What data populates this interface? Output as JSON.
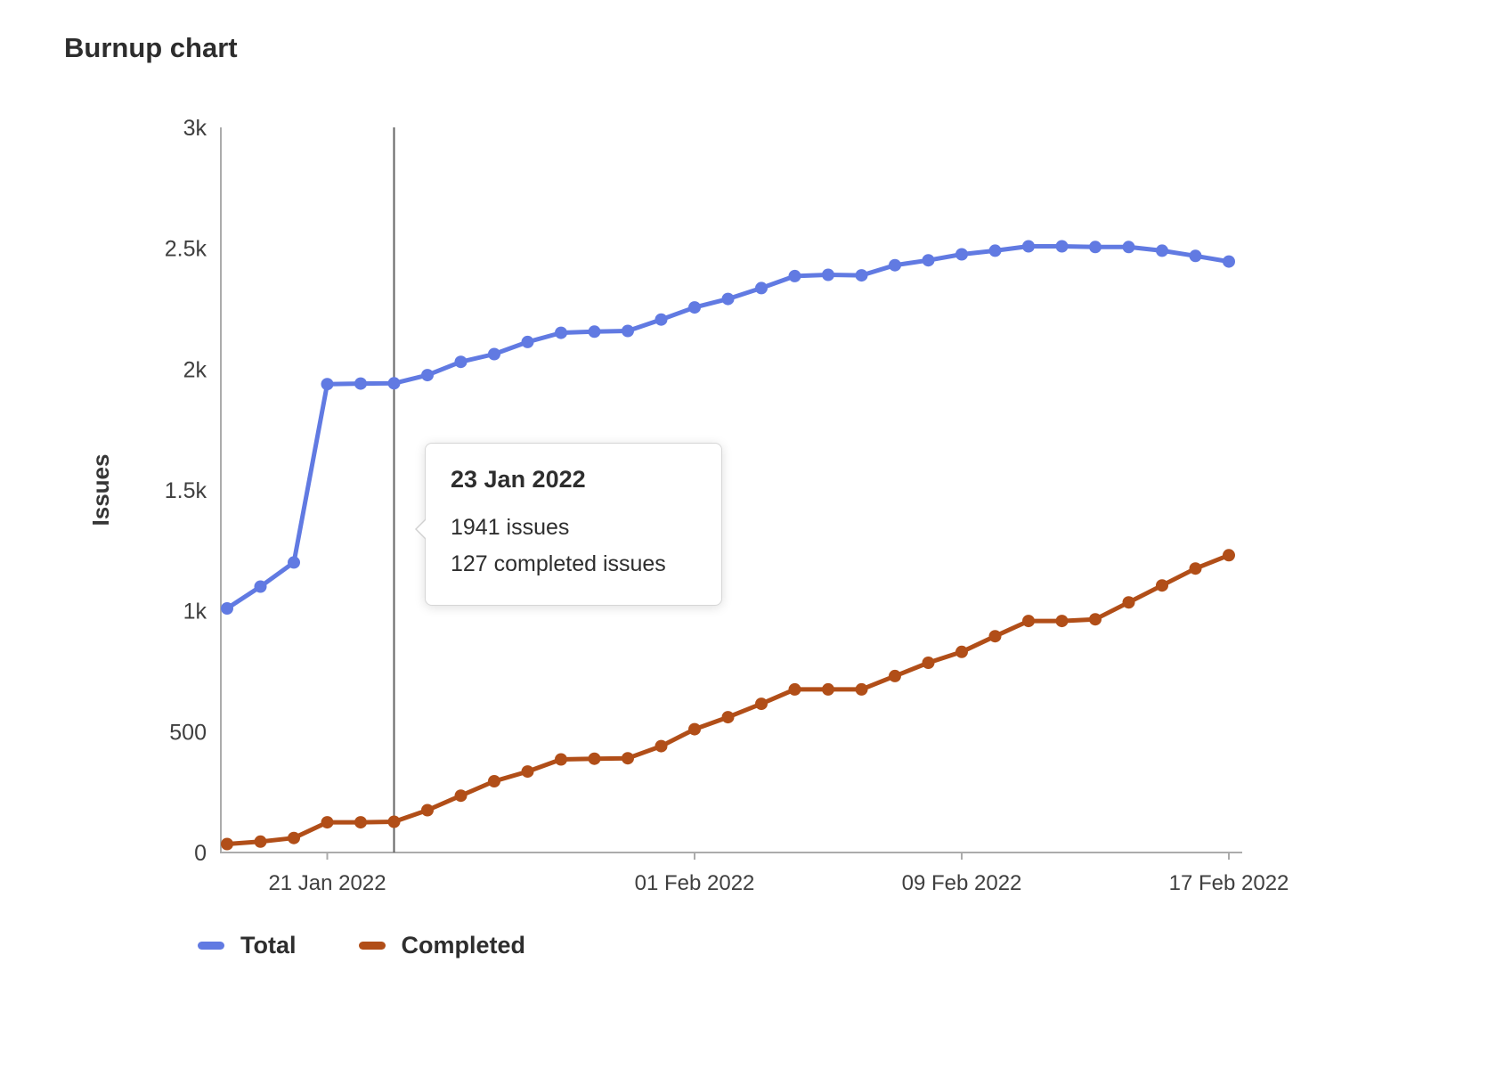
{
  "page": {
    "title": "Burnup chart"
  },
  "chart_data": {
    "type": "line",
    "title": "Burnup chart",
    "xlabel": "",
    "ylabel": "Issues",
    "ylim": [
      0,
      3000
    ],
    "grid": false,
    "legend_position": "bottom",
    "y_ticks": [
      {
        "value": 0,
        "label": "0"
      },
      {
        "value": 500,
        "label": "500"
      },
      {
        "value": 1000,
        "label": "1k"
      },
      {
        "value": 1500,
        "label": "1.5k"
      },
      {
        "value": 2000,
        "label": "2k"
      },
      {
        "value": 2500,
        "label": "2.5k"
      },
      {
        "value": 3000,
        "label": "3k"
      }
    ],
    "x": [
      "18 Jan 2022",
      "19 Jan 2022",
      "20 Jan 2022",
      "21 Jan 2022",
      "22 Jan 2022",
      "23 Jan 2022",
      "24 Jan 2022",
      "25 Jan 2022",
      "26 Jan 2022",
      "27 Jan 2022",
      "28 Jan 2022",
      "29 Jan 2022",
      "30 Jan 2022",
      "31 Jan 2022",
      "01 Feb 2022",
      "02 Feb 2022",
      "03 Feb 2022",
      "04 Feb 2022",
      "05 Feb 2022",
      "06 Feb 2022",
      "07 Feb 2022",
      "08 Feb 2022",
      "09 Feb 2022",
      "10 Feb 2022",
      "11 Feb 2022",
      "12 Feb 2022",
      "13 Feb 2022",
      "14 Feb 2022",
      "15 Feb 2022",
      "16 Feb 2022",
      "17 Feb 2022"
    ],
    "x_ticks": [
      {
        "index": 3,
        "label": "21 Jan 2022"
      },
      {
        "index": 14,
        "label": "01 Feb 2022"
      },
      {
        "index": 22,
        "label": "09 Feb 2022"
      },
      {
        "index": 30,
        "label": "17 Feb 2022"
      }
    ],
    "series": [
      {
        "name": "Total",
        "color": "#617ae2",
        "values": [
          1010,
          1100,
          1200,
          1938,
          1940,
          1941,
          1975,
          2030,
          2062,
          2112,
          2150,
          2155,
          2158,
          2205,
          2255,
          2290,
          2335,
          2385,
          2390,
          2388,
          2430,
          2450,
          2475,
          2490,
          2508,
          2508,
          2505,
          2505,
          2490,
          2468,
          2445
        ]
      },
      {
        "name": "Completed",
        "color": "#b14e18",
        "values": [
          35,
          45,
          60,
          125,
          125,
          127,
          175,
          235,
          295,
          335,
          385,
          388,
          390,
          440,
          510,
          560,
          615,
          675,
          675,
          675,
          730,
          785,
          830,
          895,
          958,
          958,
          965,
          1035,
          1105,
          1175,
          1230
        ]
      }
    ],
    "hover": {
      "index": 5,
      "date": "23 Jan 2022",
      "total": 1941,
      "completed": 127
    }
  },
  "tooltip": {
    "title": "23 Jan 2022",
    "line1": "1941 issues",
    "line2": "127 completed issues"
  }
}
